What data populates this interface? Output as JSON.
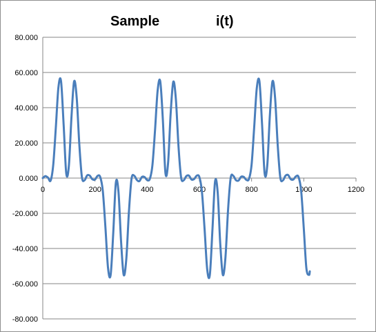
{
  "chart_data": {
    "type": "line",
    "title_parts": [
      "Sample",
      "i(t)"
    ],
    "xlabel": "",
    "ylabel": "",
    "xlim": [
      0,
      1200
    ],
    "ylim": [
      -80,
      80
    ],
    "x_ticks": [
      0,
      200,
      400,
      600,
      800,
      1000,
      1200
    ],
    "x_tick_labels": [
      "0",
      "200",
      "400",
      "600",
      "800",
      "1000",
      "1200"
    ],
    "y_ticks": [
      80,
      60,
      40,
      20,
      0,
      -20,
      -40,
      -60,
      -80
    ],
    "y_tick_labels": [
      "80.000",
      "60.000",
      "40.000",
      "20.000",
      "0.000",
      "-20.000",
      "-40.000",
      "-60.000",
      "-80.000"
    ],
    "grid": "horizontal",
    "legend": "none",
    "series_color": "#4a7ebb",
    "grid_color": "#868686",
    "series": [
      {
        "x": [
          0,
          10,
          20,
          30,
          40,
          50,
          60,
          70,
          80,
          90,
          100,
          110,
          120,
          130,
          140,
          150,
          160,
          170,
          180,
          190,
          200,
          210,
          220,
          230,
          240,
          250,
          260,
          270,
          280,
          290,
          300,
          310,
          320,
          330,
          340,
          350,
          360,
          370,
          380,
          390,
          400,
          410,
          420,
          430,
          440,
          450,
          460,
          470,
          480,
          490,
          500,
          510,
          520,
          530,
          540,
          550,
          560,
          570,
          580,
          590,
          600,
          610,
          620,
          630,
          640,
          650,
          660,
          670,
          680,
          690,
          700,
          710,
          720,
          730,
          740,
          750,
          760,
          770,
          780,
          790,
          800,
          810,
          820,
          830,
          840,
          850,
          860,
          870,
          880,
          890,
          900,
          910,
          920,
          930,
          940,
          950,
          960,
          970,
          980,
          990,
          1000,
          1010,
          1020,
          1023
        ],
        "values": [
          0.0,
          1.12,
          0.24,
          -1.44,
          7.35,
          28.7,
          51.62,
          55.0,
          30.11,
          2.6,
          6.94,
          34.83,
          54.93,
          45.64,
          19.11,
          0.46,
          -1.23,
          1.53,
          1.39,
          -0.67,
          -0.84,
          1.25,
          0.64,
          -7.36,
          -27.93,
          -51.04,
          -55.0,
          -31.19,
          -2.6,
          -7.75,
          -36.05,
          -54.99,
          -46.0,
          -19.32,
          -0.46,
          1.4,
          -0.98,
          -1.75,
          0.67,
          0.58,
          -1.09,
          -0.49,
          7.2,
          27.0,
          49.62,
          55.0,
          33.27,
          2.77,
          8.42,
          36.83,
          54.71,
          44.72,
          18.02,
          0.3,
          -1.24,
          1.12,
          1.37,
          -0.82,
          -0.55,
          1.38,
          0.56,
          -8.2,
          -29.16,
          -51.93,
          -55.0,
          -29.44,
          -1.97,
          -7.91,
          -37.46,
          -55.04,
          -44.83,
          -17.69,
          0.18,
          1.25,
          -1.17,
          -1.38,
          0.76,
          0.65,
          -1.02,
          -0.48,
          7.59,
          28.93,
          51.21,
          55.04,
          30.91,
          2.65,
          7.04,
          35.53,
          54.94,
          45.63,
          18.99,
          0.32,
          -1.31,
          1.36,
          1.7,
          -0.62,
          -0.79,
          0.98,
          0.61,
          -7.39,
          -28.6,
          -51.31,
          -54.98,
          -53.0
        ]
      }
    ]
  }
}
